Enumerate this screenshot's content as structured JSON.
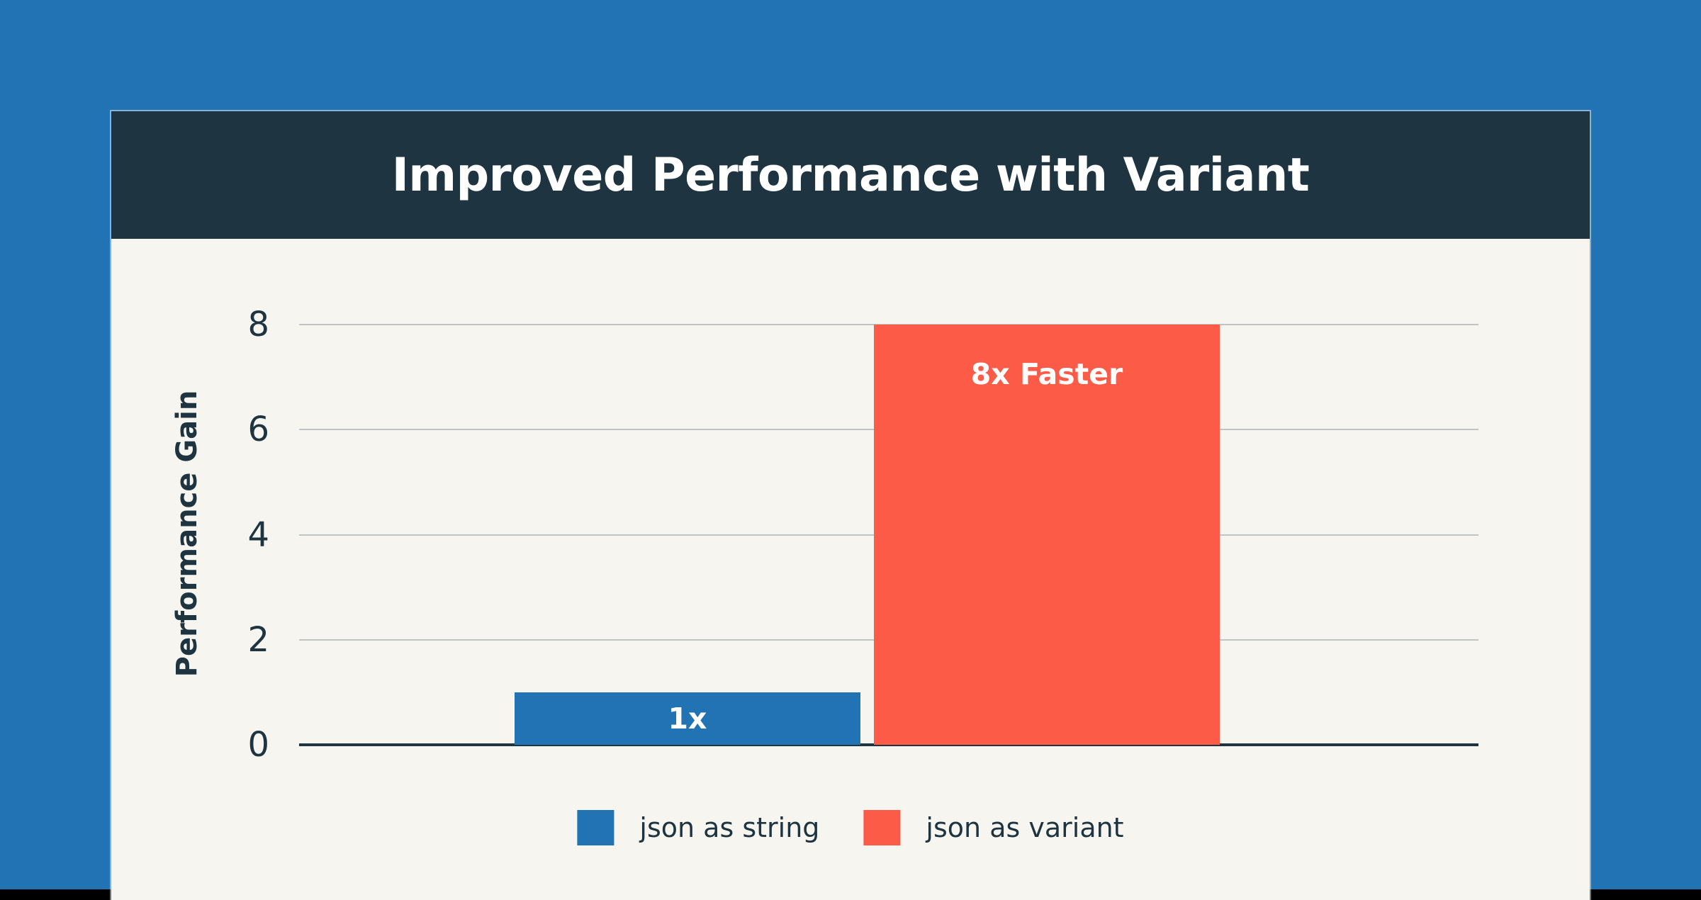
{
  "header": {
    "title": "Improved Performance with Variant"
  },
  "colors": {
    "page_background": "#2273b4",
    "card_background": "#f7f5f0",
    "header_background": "#1e3440",
    "ink": "#1e3440",
    "bar_blue": "#2273b4",
    "bar_orange": "#fb5b47",
    "gridline": "#bfc5c4",
    "axis_line": "#1e3440",
    "bar_label_text": "#ffffff",
    "bottom_strip": "#000000"
  },
  "chart_data": {
    "type": "bar",
    "title": "Improved Performance with Variant",
    "xlabel": "",
    "ylabel": "Performance Gain",
    "categories": [
      "json as string",
      "json as variant"
    ],
    "series": [
      {
        "name": "Performance Gain",
        "values": [
          1,
          8
        ]
      }
    ],
    "bar_labels": [
      "1x",
      "8x Faster"
    ],
    "bar_colors": [
      "#2273b4",
      "#fb5b47"
    ],
    "yticks": [
      0,
      2,
      4,
      6,
      8
    ],
    "ylim": [
      0,
      8.8
    ],
    "grid": true,
    "legend_position": "bottom center"
  },
  "legend": {
    "items": [
      {
        "label": "json as string",
        "color": "#2273b4"
      },
      {
        "label": "json as variant",
        "color": "#fb5b47"
      }
    ]
  }
}
